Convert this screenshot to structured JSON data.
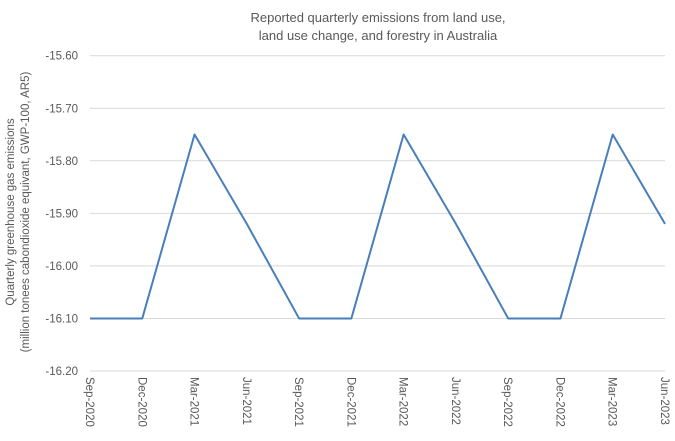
{
  "chart_data": {
    "type": "line",
    "title": [
      "Reported quarterly emissions from land use,",
      "land use change, and forestry in Australia"
    ],
    "ylabel": [
      "Quarterly greenhouse gas emissions",
      "(million tonees cabondioxide equivant, GWP-100, AR5)"
    ],
    "xlabel": "",
    "categories": [
      "Sep-2020",
      "Dec-2020",
      "Mar-2021",
      "Jun-2021",
      "Sep-2021",
      "Dec-2021",
      "Mar-2022",
      "Jun-2022",
      "Sep-2022",
      "Dec-2022",
      "Mar-2023",
      "Jun-2023"
    ],
    "series": [
      {
        "values": [
          -16.1,
          -16.1,
          -15.75,
          -15.92,
          -16.1,
          -16.1,
          -15.75,
          -15.92,
          -16.1,
          -16.1,
          -15.75,
          -15.92
        ],
        "color": "#4a7ebb"
      }
    ],
    "ylim": [
      -16.2,
      -15.6
    ],
    "yticks": [
      "-15.60",
      "-15.70",
      "-15.80",
      "-15.90",
      "-16.00",
      "-16.10",
      "-16.20"
    ],
    "grid": true,
    "legend": "none"
  }
}
